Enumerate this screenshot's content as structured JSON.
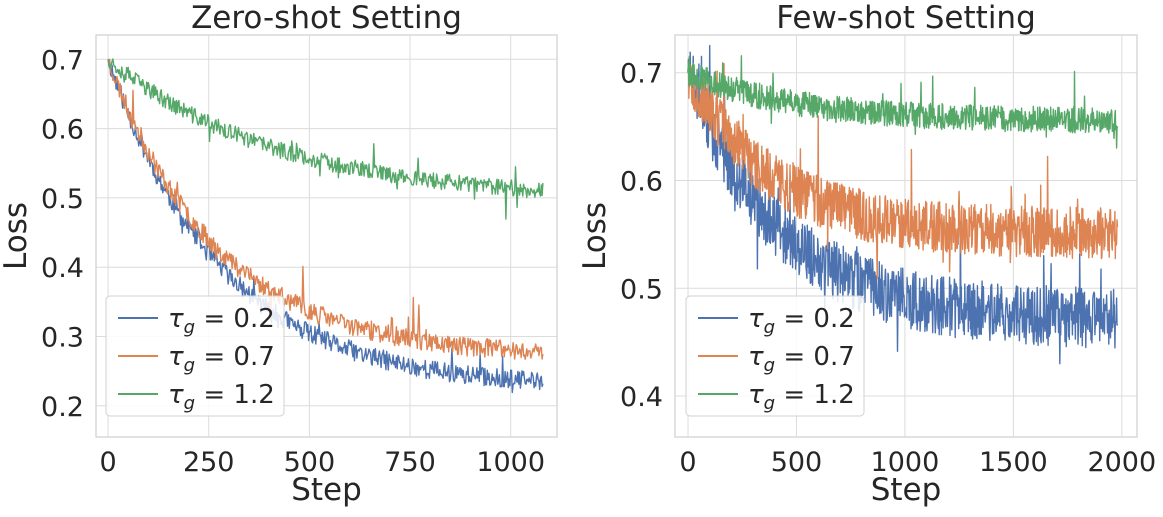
{
  "chart_data": [
    {
      "type": "line",
      "title": "Zero-shot Setting",
      "xlabel": "Step",
      "ylabel": "Loss",
      "xlim": [
        -30,
        1115
      ],
      "ylim": [
        0.155,
        0.735
      ],
      "xticks": [
        0,
        250,
        500,
        750,
        1000
      ],
      "xtick_labels": [
        "0",
        "250",
        "500",
        "750",
        "1000"
      ],
      "yticks": [
        0.2,
        0.3,
        0.4,
        0.5,
        0.6,
        0.7
      ],
      "ytick_labels": [
        "0.2",
        "0.3",
        "0.4",
        "0.5",
        "0.6",
        "0.7"
      ],
      "grid": true,
      "legend_position": "lower-left",
      "steps": 1080,
      "series": [
        {
          "name": "τg = 0.2",
          "symbol": "τ",
          "sub": "g",
          "value_label": " = 0.2",
          "color": "#4c72b0",
          "start": 0.7,
          "end": 0.225,
          "decay": 280,
          "noise": 0.014,
          "spike": 0.04,
          "seed": 11
        },
        {
          "name": "τg = 0.7",
          "symbol": "τ",
          "sub": "g",
          "value_label": " = 0.7",
          "color": "#dd8452",
          "start": 0.7,
          "end": 0.27,
          "decay": 270,
          "noise": 0.014,
          "spike": 0.05,
          "seed": 23
        },
        {
          "name": "τg = 1.2",
          "symbol": "τ",
          "sub": "g",
          "value_label": " = 1.2",
          "color": "#55a868",
          "start": 0.7,
          "end": 0.495,
          "decay": 420,
          "noise": 0.012,
          "spike": 0.05,
          "seed": 37
        }
      ]
    },
    {
      "type": "line",
      "title": "Few-shot Setting",
      "xlabel": "Step",
      "ylabel": "Loss",
      "xlim": [
        -60,
        2070
      ],
      "ylim": [
        0.362,
        0.735
      ],
      "xticks": [
        0,
        500,
        1000,
        1500,
        2000
      ],
      "xtick_labels": [
        "0",
        "500",
        "1000",
        "1500",
        "2000"
      ],
      "yticks": [
        0.4,
        0.5,
        0.6,
        0.7
      ],
      "ytick_labels": [
        "0.4",
        "0.5",
        "0.6",
        "0.7"
      ],
      "grid": true,
      "legend_position": "lower-left",
      "steps": 1980,
      "series": [
        {
          "name": "τg = 0.2",
          "symbol": "τ",
          "sub": "g",
          "value_label": " = 0.2",
          "color": "#4c72b0",
          "start": 0.7,
          "end": 0.47,
          "decay": 420,
          "noise": 0.028,
          "spike": 0.06,
          "seed": 51
        },
        {
          "name": "τg = 0.7",
          "symbol": "τ",
          "sub": "g",
          "value_label": " = 0.7",
          "color": "#dd8452",
          "start": 0.7,
          "end": 0.55,
          "decay": 380,
          "noise": 0.024,
          "spike": 0.05,
          "seed": 67
        },
        {
          "name": "τg = 1.2",
          "symbol": "τ",
          "sub": "g",
          "value_label": " = 1.2",
          "color": "#55a868",
          "start": 0.7,
          "end": 0.655,
          "decay": 500,
          "noise": 0.012,
          "spike": 0.03,
          "seed": 79
        }
      ]
    }
  ]
}
